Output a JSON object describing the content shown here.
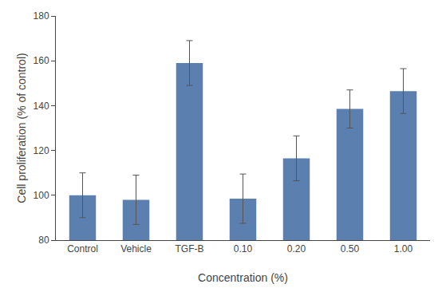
{
  "chart_data": {
    "type": "bar",
    "categories": [
      "Control",
      "Vehicle",
      "TGF-B",
      "0.10",
      "0.20",
      "0.50",
      "1.00"
    ],
    "values": [
      100.0,
      98.0,
      159.0,
      98.5,
      116.5,
      138.5,
      146.5
    ],
    "errors": [
      10.0,
      11.0,
      10.0,
      11.0,
      10.0,
      8.5,
      10.0
    ],
    "color": "#5b7faf",
    "xlabel": "Concentration (%)",
    "ylabel": "Cell proliferation (% of control)",
    "ylim": [
      80,
      180
    ],
    "yticks": [
      80,
      100,
      120,
      140,
      160,
      180
    ],
    "grid": false
  }
}
